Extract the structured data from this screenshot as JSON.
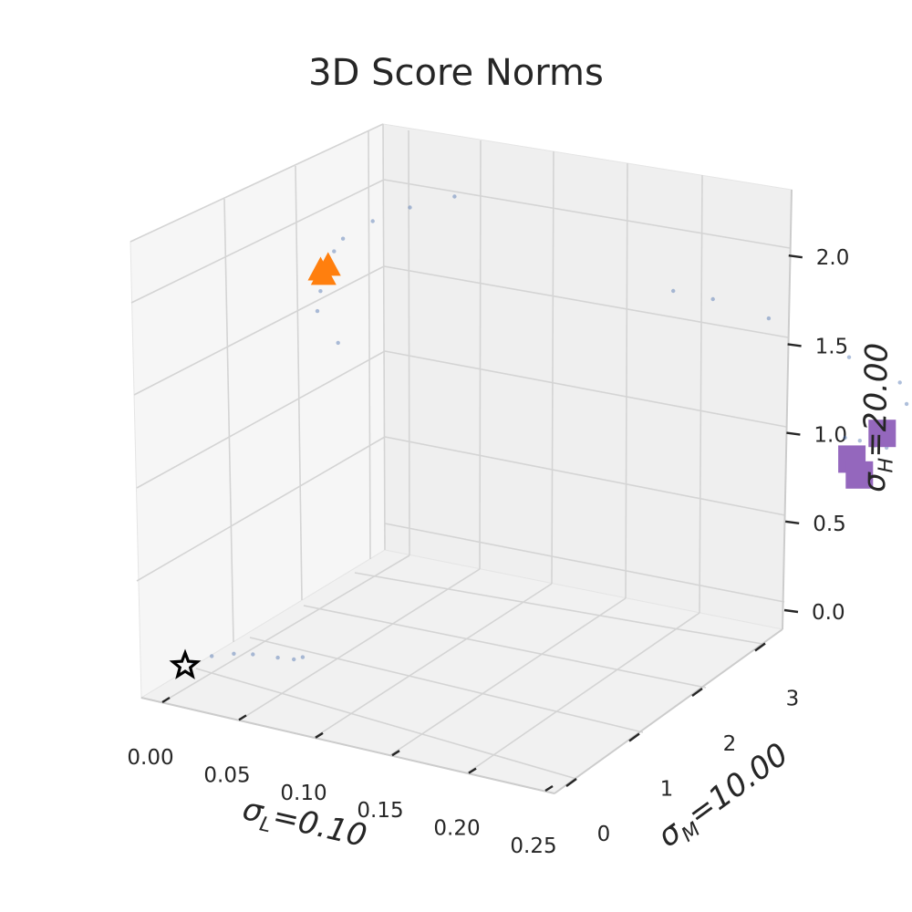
{
  "chart_data": {
    "type": "scatter",
    "projection": "3d",
    "title": "3D Score Norms",
    "axes": {
      "x": {
        "label_main": "σ",
        "label_sub": "L",
        "label_rest": "=0.10",
        "range": [
          0,
          0.25
        ],
        "ticks": [
          "0.00",
          "0.05",
          "0.10",
          "0.15",
          "0.20",
          "0.25"
        ],
        "tick_values": [
          0,
          0.05,
          0.1,
          0.15,
          0.2,
          0.25
        ]
      },
      "y": {
        "label_main": "σ",
        "label_sub": "M",
        "label_rest": "=10.00",
        "range": [
          0,
          3.3
        ],
        "ticks": [
          "0",
          "1",
          "2",
          "3"
        ],
        "tick_values": [
          0,
          1,
          2,
          3
        ]
      },
      "z": {
        "label_main": "σ",
        "label_sub": "H",
        "label_rest": "=20.00",
        "range": [
          -0.1,
          2.3
        ],
        "ticks": [
          "0.0",
          "0.5",
          "1.0",
          "1.5",
          "2.0"
        ],
        "tick_values": [
          0,
          0.5,
          1.0,
          1.5,
          2.0
        ]
      }
    },
    "grid": true,
    "series": [
      {
        "marker": "dot",
        "color": "#4c72b0",
        "points": [
          [
            0.003,
            0.02,
            0.02
          ],
          [
            0.01,
            0.08,
            0.05
          ],
          [
            0.02,
            0.13,
            0.07
          ],
          [
            0.03,
            0.16,
            0.08
          ],
          [
            0.045,
            0.18,
            0.09
          ],
          [
            0.055,
            0.19,
            0.1
          ],
          [
            0.06,
            0.2,
            0.12
          ],
          [
            0.001,
            0.98,
            1.92
          ],
          [
            0.003,
            1.02,
            1.98
          ],
          [
            0.01,
            1.15,
            2.05
          ],
          [
            0.02,
            1.3,
            2.1
          ],
          [
            0.03,
            1.5,
            2.12
          ],
          [
            0.002,
            0.88,
            1.74
          ],
          [
            0.004,
            0.84,
            1.65
          ],
          [
            0.012,
            0.9,
            1.48
          ],
          [
            0.02,
            3.05,
            1.12
          ],
          [
            0.04,
            3.12,
            1.1
          ],
          [
            0.07,
            3.2,
            1.04
          ],
          [
            0.12,
            3.25,
            0.93
          ],
          [
            0.16,
            3.2,
            0.9
          ],
          [
            0.175,
            3.1,
            0.85
          ],
          [
            0.205,
            2.4,
            0.95
          ],
          [
            0.21,
            2.45,
            0.93
          ],
          [
            0.215,
            2.5,
            0.9
          ],
          [
            0.218,
            2.55,
            0.88
          ]
        ]
      },
      {
        "marker": "star",
        "color": "#000000",
        "points": [
          [
            0.0,
            0.0,
            0.0
          ]
        ]
      },
      {
        "marker": "triangle",
        "color": "#ff7f0e",
        "points": [
          [
            0.0,
            0.9,
            1.85
          ],
          [
            0.0,
            0.92,
            1.82
          ],
          [
            0.0,
            0.95,
            1.86
          ]
        ]
      },
      {
        "marker": "square",
        "color": "#9467bd",
        "points": [
          [
            0.215,
            2.55,
            0.95
          ],
          [
            0.22,
            2.3,
            0.9
          ],
          [
            0.22,
            2.35,
            0.8
          ]
        ]
      }
    ]
  }
}
